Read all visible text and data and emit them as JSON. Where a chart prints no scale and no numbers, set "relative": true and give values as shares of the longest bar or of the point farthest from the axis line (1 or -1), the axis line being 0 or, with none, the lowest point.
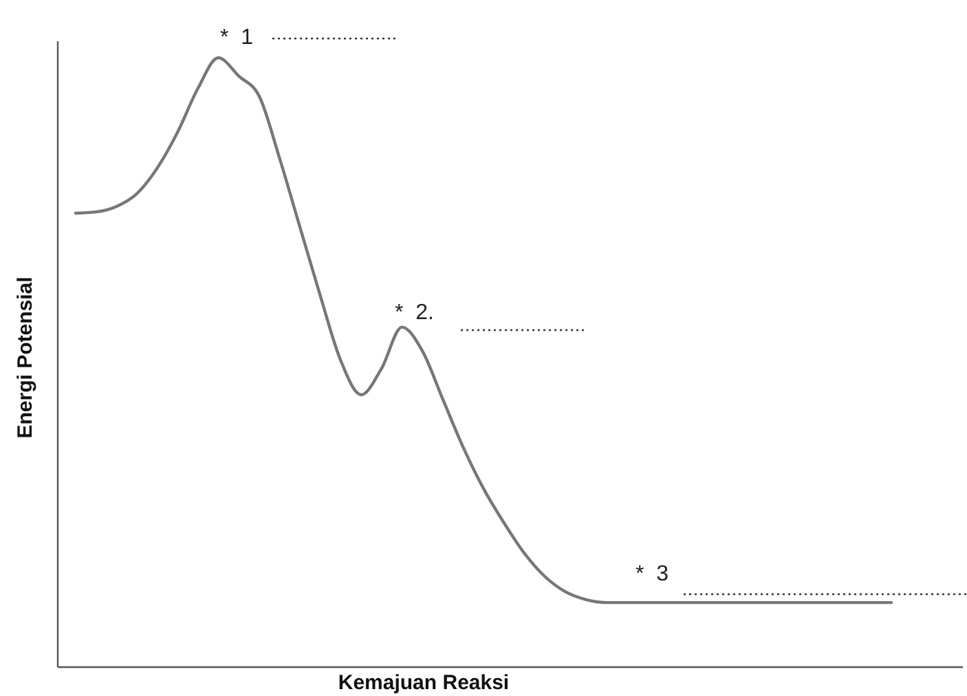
{
  "chart_data": {
    "type": "line",
    "relative": true,
    "xlabel": "Kemajuan Reaksi",
    "ylabel": "Energi Potensial",
    "categories": [
      null,
      null,
      null,
      null,
      null,
      null,
      null,
      null,
      null,
      null,
      null,
      null,
      null,
      null,
      null,
      null,
      null,
      null,
      null,
      null,
      null,
      null,
      null,
      null,
      null,
      null,
      null,
      null,
      null,
      null,
      null,
      null,
      null,
      null,
      null,
      null,
      null,
      null,
      null,
      null,
      null
    ],
    "series": [
      {
        "color": "#777777",
        "values": [
          0.745,
          0.747,
          0.756,
          0.777,
          0.819,
          0.878,
          0.95,
          1,
          0.97,
          0.937,
          0.835,
          0.722,
          0.609,
          0.503,
          0.447,
          0.49,
          0.558,
          0.519,
          0.44,
          0.361,
          0.293,
          0.237,
          0.187,
          0.149,
          0.124,
          0.111,
          0.106,
          0.106,
          0.106,
          0.106,
          0.106,
          0.106,
          0.106,
          0.106,
          0.106,
          0.106,
          0.106,
          0.106,
          0.106,
          0.106,
          0.106
        ]
      }
    ],
    "annotations": [
      "* 1",
      "* 2.",
      "* 3"
    ],
    "marker": "none",
    "line_style": "solid"
  }
}
